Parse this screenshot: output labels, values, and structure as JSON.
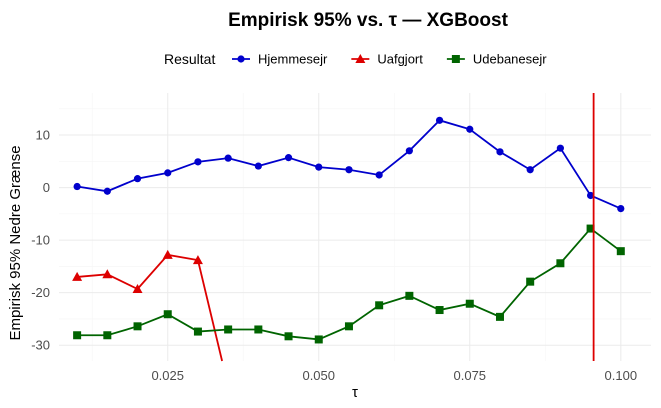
{
  "chart_data": {
    "type": "line",
    "title": "Empirisk 95% vs. τ — XGBoost",
    "xlabel": "τ",
    "ylabel": "Empirisk 95% Nedre Grænse",
    "xlim": [
      0.007,
      0.105
    ],
    "ylim": [
      -33,
      18
    ],
    "xticks": [
      0.025,
      0.05,
      0.075,
      0.1
    ],
    "xtick_labels": [
      "0.025",
      "0.050",
      "0.075",
      "0.100"
    ],
    "yticks": [
      -30,
      -20,
      -10,
      0,
      10
    ],
    "ytick_labels": [
      "-30",
      "-20",
      "-10",
      "0",
      "10"
    ],
    "grid": true,
    "legend": {
      "title": "Resultat",
      "placement": "top",
      "entries": [
        "Hjemmesejr",
        "Uafgjort",
        "Udebanesejr"
      ]
    },
    "series": [
      {
        "name": "Hjemmesejr",
        "color": "#0000cc",
        "marker": "circle",
        "x": [
          0.01,
          0.015,
          0.02,
          0.025,
          0.03,
          0.035,
          0.04,
          0.045,
          0.05,
          0.055,
          0.06,
          0.065,
          0.07,
          0.075,
          0.08,
          0.085,
          0.09,
          0.095,
          0.1
        ],
        "values": [
          0.2,
          -0.7,
          1.7,
          2.8,
          4.9,
          5.6,
          4.1,
          5.7,
          3.9,
          3.4,
          2.4,
          7.0,
          12.8,
          11.1,
          6.8,
          3.4,
          7.5,
          -1.5,
          -4.0
        ]
      },
      {
        "name": "Uafgjort",
        "color": "#dd0000",
        "marker": "triangle",
        "x": [
          0.01,
          0.015,
          0.02,
          0.025,
          0.03
        ],
        "values": [
          -17.0,
          -16.5,
          -19.3,
          -12.8,
          -13.8
        ],
        "extension": {
          "x": [
            0.03,
            0.034
          ],
          "values": [
            -13.8,
            -33
          ]
        }
      },
      {
        "name": "Udebanesejr",
        "color": "#006400",
        "marker": "square",
        "x": [
          0.01,
          0.015,
          0.02,
          0.025,
          0.03,
          0.035,
          0.04,
          0.045,
          0.05,
          0.055,
          0.06,
          0.065,
          0.07,
          0.075,
          0.08,
          0.085,
          0.09,
          0.095,
          0.1
        ],
        "values": [
          -28.1,
          -28.1,
          -26.4,
          -24.1,
          -27.4,
          -27.0,
          -27.0,
          -28.3,
          -28.9,
          -26.4,
          -22.4,
          -20.6,
          -23.3,
          -22.1,
          -24.6,
          -17.9,
          -14.4,
          -7.8,
          -12.1
        ]
      }
    ],
    "annotations": [
      {
        "type": "vline",
        "x": 0.0955,
        "color": "#dd0000"
      }
    ]
  }
}
